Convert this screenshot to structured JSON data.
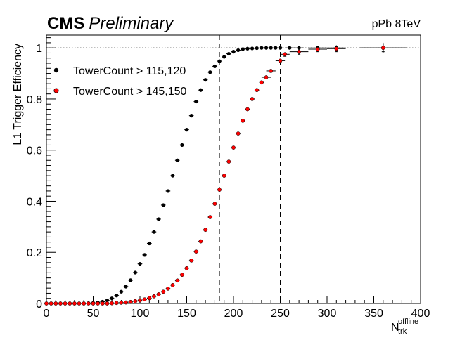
{
  "header": {
    "experiment": "CMS",
    "status": "Preliminary",
    "collision": "pPb 8TeV"
  },
  "chart_data": {
    "type": "scatter",
    "title": "",
    "xlabel": "N",
    "xlabel_sup": "offline",
    "xlabel_sub": "trk",
    "ylabel": "L1 Trigger Efficiency",
    "xlim": [
      0,
      400
    ],
    "ylim": [
      0,
      1.05
    ],
    "xticks": [
      0,
      50,
      100,
      150,
      200,
      250,
      300,
      350,
      400
    ],
    "yticks": [
      0,
      0.2,
      0.4,
      0.6,
      0.8,
      1
    ],
    "grid": false,
    "legend_position": "top-left",
    "reference_lines": {
      "horizontal_dotted_y": 1,
      "vertical_dashed_x": [
        185,
        250
      ]
    },
    "series": [
      {
        "name": "TowerCount > 115,120",
        "color": "#000000",
        "marker": "circle",
        "x": [
          0,
          5,
          10,
          15,
          20,
          25,
          30,
          35,
          40,
          45,
          50,
          55,
          60,
          65,
          70,
          75,
          80,
          85,
          90,
          95,
          100,
          105,
          110,
          115,
          120,
          125,
          130,
          135,
          140,
          145,
          150,
          155,
          160,
          165,
          170,
          175,
          180,
          185,
          190,
          195,
          200,
          205,
          210,
          215,
          220,
          225,
          230,
          235,
          240,
          245,
          250,
          260,
          270,
          290,
          310,
          360
        ],
        "y": [
          0,
          0,
          0,
          0,
          0,
          0,
          0,
          0,
          0,
          0.001,
          0.002,
          0.004,
          0.007,
          0.012,
          0.02,
          0.031,
          0.046,
          0.066,
          0.091,
          0.121,
          0.155,
          0.19,
          0.235,
          0.28,
          0.33,
          0.385,
          0.44,
          0.5,
          0.56,
          0.62,
          0.68,
          0.735,
          0.79,
          0.835,
          0.875,
          0.905,
          0.928,
          0.948,
          0.965,
          0.977,
          0.985,
          0.991,
          0.995,
          0.997,
          0.998,
          0.999,
          1,
          1,
          1,
          1,
          1,
          1,
          1,
          1,
          1,
          1
        ],
        "xerr": [
          2.5,
          2.5,
          2.5,
          2.5,
          2.5,
          2.5,
          2.5,
          2.5,
          2.5,
          2.5,
          2.5,
          2.5,
          2.5,
          2.5,
          2.5,
          2.5,
          2.5,
          2.5,
          2.5,
          2.5,
          2.5,
          2.5,
          2.5,
          2.5,
          2.5,
          2.5,
          2.5,
          2.5,
          2.5,
          2.5,
          2.5,
          2.5,
          2.5,
          2.5,
          2.5,
          2.5,
          2.5,
          2.5,
          2.5,
          2.5,
          2.5,
          2.5,
          2.5,
          2.5,
          2.5,
          2.5,
          2.5,
          2.5,
          2.5,
          2.5,
          2.5,
          5,
          5,
          10,
          10,
          25
        ],
        "yerr": [
          0,
          0,
          0,
          0,
          0,
          0,
          0,
          0,
          0,
          0,
          0,
          0,
          0,
          0,
          0,
          0,
          0,
          0,
          0,
          0,
          0,
          0,
          0,
          0,
          0,
          0,
          0,
          0,
          0,
          0,
          0,
          0,
          0,
          0,
          0,
          0,
          0,
          0,
          0,
          0,
          0,
          0,
          0,
          0,
          0,
          0,
          0,
          0,
          0,
          0,
          0,
          0,
          0,
          0,
          0.01,
          0.015
        ]
      },
      {
        "name": "TowerCount > 145,150",
        "color": "#ff0000",
        "marker": "circle",
        "x": [
          0,
          5,
          10,
          15,
          20,
          25,
          30,
          35,
          40,
          45,
          50,
          55,
          60,
          65,
          70,
          75,
          80,
          85,
          90,
          95,
          100,
          105,
          110,
          115,
          120,
          125,
          130,
          135,
          140,
          145,
          150,
          155,
          160,
          165,
          170,
          175,
          180,
          185,
          190,
          195,
          200,
          205,
          210,
          215,
          220,
          225,
          230,
          235,
          240,
          250,
          255,
          270,
          290,
          310,
          360
        ],
        "y": [
          0,
          0,
          0,
          0,
          0,
          0,
          0,
          0,
          0,
          0,
          0,
          0,
          0,
          0,
          0.001,
          0.002,
          0.003,
          0.004,
          0.006,
          0.009,
          0.012,
          0.016,
          0.021,
          0.028,
          0.036,
          0.046,
          0.058,
          0.072,
          0.09,
          0.112,
          0.138,
          0.168,
          0.203,
          0.243,
          0.288,
          0.338,
          0.39,
          0.445,
          0.5,
          0.555,
          0.61,
          0.665,
          0.715,
          0.76,
          0.8,
          0.835,
          0.865,
          0.885,
          0.91,
          0.95,
          0.975,
          0.985,
          0.995,
          0.997,
          1
        ],
        "xerr": [
          2.5,
          2.5,
          2.5,
          2.5,
          2.5,
          2.5,
          2.5,
          2.5,
          2.5,
          2.5,
          2.5,
          2.5,
          2.5,
          2.5,
          2.5,
          2.5,
          2.5,
          2.5,
          2.5,
          2.5,
          2.5,
          2.5,
          2.5,
          2.5,
          2.5,
          2.5,
          2.5,
          2.5,
          2.5,
          2.5,
          2.5,
          2.5,
          2.5,
          2.5,
          2.5,
          2.5,
          2.5,
          2.5,
          2.5,
          2.5,
          2.5,
          2.5,
          2.5,
          2.5,
          2.5,
          2.5,
          2.5,
          5,
          5,
          5,
          5,
          10,
          10,
          10,
          25
        ],
        "yerr": [
          0,
          0,
          0,
          0,
          0,
          0,
          0,
          0,
          0,
          0,
          0,
          0,
          0,
          0,
          0,
          0,
          0,
          0,
          0,
          0,
          0,
          0,
          0,
          0,
          0,
          0,
          0,
          0,
          0,
          0,
          0,
          0,
          0,
          0,
          0,
          0,
          0,
          0,
          0,
          0,
          0,
          0,
          0,
          0,
          0,
          0,
          0,
          0,
          0.005,
          0.007,
          0.008,
          0.01,
          0.01,
          0.012,
          0.02
        ]
      }
    ]
  }
}
